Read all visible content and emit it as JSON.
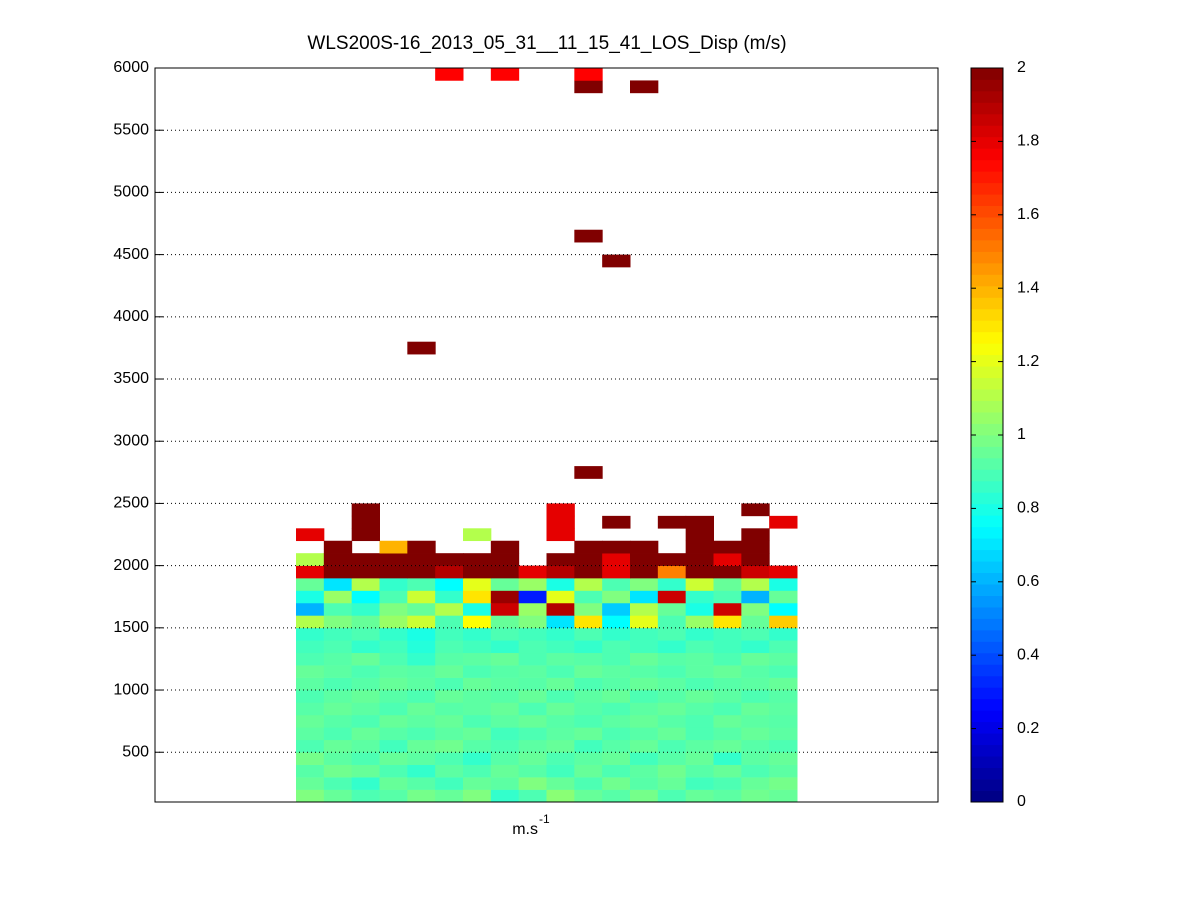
{
  "chart_data": {
    "type": "heatmap",
    "title": "WLS200S-16_2013_05_31__11_15_41_LOS_Disp (m/s)",
    "xlabel": "m.s",
    "xlabel_superscript": "-1",
    "categories": [
      null,
      null,
      null,
      null,
      null,
      null,
      null,
      null,
      null,
      null,
      null,
      null,
      null,
      null,
      null,
      null,
      null,
      null
    ],
    "ybins": [
      100,
      200,
      300,
      400,
      500,
      600,
      700,
      800,
      900,
      1000,
      1100,
      1200,
      1300,
      1400,
      1500,
      1600,
      1700,
      1800,
      1900,
      2000,
      2100,
      2200,
      2300,
      2400,
      2500,
      2700,
      2800,
      3700,
      3800,
      4400,
      4500,
      4600,
      4700,
      5800,
      5900,
      6000
    ],
    "z": [
      [
        1.0,
        0.95,
        0.9,
        0.92,
        0.98,
        0.95,
        1.0,
        0.85,
        0.9,
        1.02,
        0.95,
        0.92,
        0.98,
        0.9,
        0.95,
        0.93,
        0.97,
        0.95
      ],
      [
        0.95,
        0.9,
        0.85,
        0.95,
        0.92,
        0.88,
        0.95,
        0.93,
        1.0,
        0.95,
        0.9,
        0.97,
        0.92,
        0.95,
        0.88,
        0.9,
        0.95,
        0.98
      ],
      [
        0.92,
        0.97,
        0.95,
        0.9,
        0.85,
        0.93,
        0.9,
        0.95,
        0.92,
        0.88,
        0.95,
        0.9,
        0.93,
        0.97,
        0.92,
        0.95,
        0.9,
        0.93
      ],
      [
        0.98,
        0.93,
        0.9,
        0.95,
        0.93,
        0.9,
        0.85,
        0.92,
        0.95,
        0.9,
        0.93,
        0.95,
        0.88,
        0.92,
        0.95,
        0.85,
        0.93,
        0.95
      ],
      [
        0.9,
        0.95,
        0.93,
        0.88,
        0.95,
        0.97,
        0.92,
        0.9,
        0.93,
        0.95,
        0.88,
        0.92,
        0.95,
        0.9,
        0.93,
        0.95,
        0.92,
        0.9
      ],
      [
        0.93,
        0.9,
        0.95,
        0.92,
        0.9,
        0.93,
        0.95,
        0.88,
        0.9,
        0.93,
        0.95,
        0.9,
        0.92,
        0.95,
        0.9,
        0.92,
        0.95,
        0.93
      ],
      [
        0.95,
        0.92,
        0.9,
        0.95,
        0.93,
        0.95,
        0.9,
        0.93,
        0.95,
        0.92,
        0.9,
        0.93,
        0.95,
        0.92,
        0.9,
        0.95,
        0.93,
        0.92
      ],
      [
        0.92,
        0.95,
        0.93,
        0.9,
        0.95,
        0.92,
        0.93,
        0.95,
        0.9,
        0.95,
        0.92,
        0.9,
        0.93,
        0.95,
        0.92,
        0.9,
        0.95,
        0.93
      ],
      [
        0.9,
        0.93,
        0.95,
        0.92,
        0.9,
        0.95,
        0.93,
        0.92,
        0.95,
        0.9,
        0.93,
        0.95,
        0.9,
        0.92,
        0.95,
        0.93,
        0.9,
        0.92
      ],
      [
        0.93,
        0.9,
        0.92,
        0.95,
        0.93,
        0.9,
        0.95,
        0.93,
        0.92,
        0.95,
        0.9,
        0.92,
        0.95,
        0.93,
        0.9,
        0.92,
        0.93,
        0.95
      ],
      [
        0.95,
        0.93,
        0.9,
        0.93,
        0.92,
        0.95,
        0.9,
        0.92,
        0.93,
        0.9,
        0.95,
        0.93,
        0.92,
        0.9,
        0.93,
        0.95,
        0.92,
        0.9
      ],
      [
        0.9,
        0.92,
        0.95,
        0.9,
        0.85,
        0.92,
        0.93,
        0.95,
        0.9,
        0.93,
        0.92,
        0.9,
        0.95,
        0.92,
        0.93,
        0.9,
        0.95,
        0.93
      ],
      [
        0.88,
        0.9,
        0.85,
        0.88,
        0.82,
        0.9,
        0.88,
        0.85,
        0.9,
        0.88,
        0.85,
        0.9,
        0.88,
        0.85,
        0.9,
        0.88,
        0.85,
        0.9
      ],
      [
        0.85,
        0.88,
        0.9,
        0.85,
        0.8,
        0.88,
        0.85,
        0.9,
        0.88,
        0.85,
        0.9,
        0.85,
        0.88,
        0.9,
        0.85,
        0.88,
        0.9,
        0.85
      ],
      [
        1.1,
        1.0,
        0.95,
        1.05,
        1.15,
        0.9,
        1.25,
        0.95,
        1.0,
        0.7,
        1.3,
        0.75,
        1.2,
        0.9,
        1.05,
        1.3,
        0.95,
        1.35
      ],
      [
        0.6,
        0.9,
        0.85,
        1.0,
        0.95,
        1.1,
        0.8,
        1.85,
        1.05,
        1.9,
        1.0,
        0.65,
        1.1,
        0.95,
        0.8,
        1.85,
        1.0,
        0.75
      ],
      [
        0.8,
        1.05,
        0.75,
        0.9,
        1.15,
        0.85,
        1.3,
        1.95,
        0.3,
        1.2,
        0.9,
        1.0,
        0.7,
        1.85,
        0.85,
        0.9,
        0.6,
        0.95
      ],
      [
        0.95,
        0.7,
        1.1,
        0.85,
        0.9,
        0.75,
        1.2,
        0.95,
        1.05,
        0.8,
        1.1,
        0.9,
        1.0,
        0.85,
        1.15,
        0.95,
        1.1,
        0.8
      ],
      [
        1.8,
        2,
        2,
        2,
        2,
        1.9,
        2,
        2,
        1.8,
        1.9,
        2,
        1.8,
        2,
        1.5,
        2,
        2,
        1.85,
        1.8
      ],
      [
        1.1,
        2,
        2,
        2,
        2,
        2,
        2,
        2,
        null,
        2,
        2,
        1.8,
        2,
        2,
        2,
        1.8,
        2,
        null
      ],
      [
        null,
        2,
        null,
        1.4,
        2,
        null,
        null,
        2,
        null,
        null,
        2,
        2,
        2,
        null,
        2,
        2,
        2,
        null
      ],
      [
        1.8,
        null,
        2,
        null,
        null,
        null,
        1.1,
        null,
        null,
        1.8,
        null,
        null,
        null,
        null,
        2,
        null,
        2,
        null
      ],
      [
        null,
        null,
        2,
        null,
        null,
        null,
        null,
        null,
        null,
        1.8,
        null,
        2,
        null,
        2,
        2,
        null,
        null,
        1.8
      ],
      [
        null,
        null,
        2,
        null,
        null,
        null,
        null,
        null,
        null,
        1.8,
        null,
        null,
        null,
        null,
        null,
        null,
        2,
        null
      ],
      [
        null,
        null,
        null,
        null,
        null,
        null,
        null,
        null,
        null,
        null,
        null,
        null,
        null,
        null,
        null,
        null,
        null,
        null
      ],
      [
        null,
        null,
        null,
        null,
        null,
        null,
        null,
        null,
        null,
        null,
        2,
        null,
        null,
        null,
        null,
        null,
        null,
        null
      ],
      [
        null,
        null,
        null,
        null,
        null,
        null,
        null,
        null,
        null,
        null,
        null,
        null,
        null,
        null,
        null,
        null,
        null,
        null
      ],
      [
        null,
        null,
        null,
        null,
        2,
        null,
        null,
        null,
        null,
        null,
        null,
        null,
        null,
        null,
        null,
        null,
        null,
        null
      ],
      [
        null,
        null,
        null,
        null,
        null,
        null,
        null,
        null,
        null,
        null,
        null,
        null,
        null,
        null,
        null,
        null,
        null,
        null
      ],
      [
        null,
        null,
        null,
        null,
        null,
        null,
        null,
        null,
        null,
        null,
        null,
        2,
        null,
        null,
        null,
        null,
        null,
        null
      ],
      [
        null,
        null,
        null,
        null,
        null,
        null,
        null,
        null,
        null,
        null,
        null,
        null,
        null,
        null,
        null,
        null,
        null,
        null
      ],
      [
        null,
        null,
        null,
        null,
        null,
        null,
        null,
        null,
        null,
        null,
        2,
        null,
        null,
        null,
        null,
        null,
        null,
        null
      ],
      [
        null,
        null,
        null,
        null,
        null,
        null,
        null,
        null,
        null,
        null,
        null,
        null,
        null,
        null,
        null,
        null,
        null,
        null
      ],
      [
        null,
        null,
        null,
        null,
        null,
        null,
        null,
        null,
        null,
        null,
        2,
        null,
        2,
        null,
        null,
        null,
        null,
        null
      ],
      [
        null,
        null,
        null,
        null,
        null,
        1.75,
        null,
        1.75,
        null,
        null,
        1.75,
        null,
        null,
        null,
        null,
        null,
        null,
        null
      ]
    ],
    "ylim": [
      100,
      6000
    ],
    "yticks": [
      500,
      1000,
      1500,
      2000,
      2500,
      3000,
      3500,
      4000,
      4500,
      5000,
      5500,
      6000
    ],
    "grid": true,
    "colormap": "jet",
    "clim": [
      0,
      2
    ],
    "cticks": [
      0,
      0.2,
      0.4,
      0.6,
      0.8,
      1,
      1.2,
      1.4,
      1.6,
      1.8,
      2
    ]
  }
}
